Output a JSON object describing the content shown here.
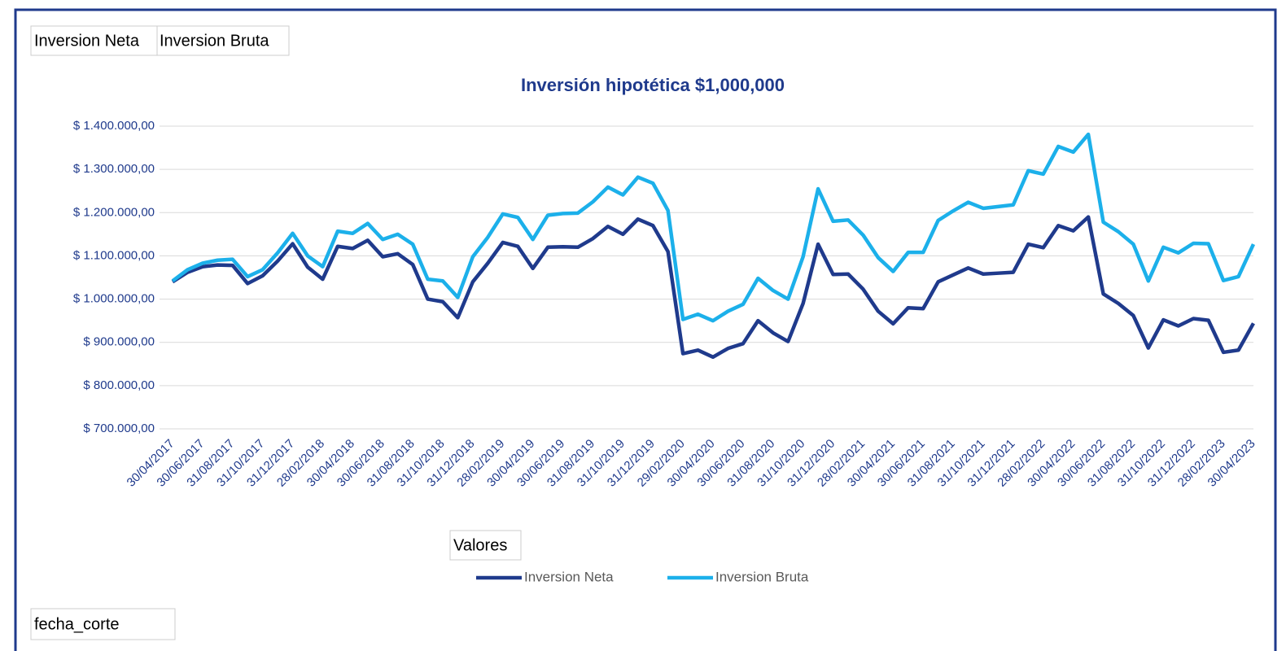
{
  "chart_data": {
    "type": "line",
    "title": "Inversión hipotética $1,000,000",
    "categories": [
      "30/04/2017",
      null,
      "30/06/2017",
      null,
      "31/08/2017",
      null,
      "31/10/2017",
      null,
      "31/12/2017",
      null,
      "28/02/2018",
      null,
      "30/04/2018",
      null,
      "30/06/2018",
      null,
      "31/08/2018",
      null,
      "31/10/2018",
      null,
      "31/12/2018",
      null,
      "28/02/2019",
      null,
      "30/04/2019",
      null,
      "30/06/2019",
      null,
      "31/08/2019",
      null,
      "31/10/2019",
      null,
      "31/12/2019",
      null,
      "29/02/2020",
      null,
      "30/04/2020",
      null,
      "30/06/2020",
      null,
      "31/08/2020",
      null,
      "31/10/2020",
      null,
      "31/12/2020",
      null,
      "28/02/2021",
      null,
      "30/04/2021",
      null,
      "30/06/2021",
      null,
      "31/08/2021",
      null,
      "31/10/2021",
      null,
      "31/12/2021",
      null,
      "28/02/2022",
      null,
      "30/04/2022",
      null,
      "30/06/2022",
      null,
      "31/08/2022",
      null,
      "31/10/2022",
      null,
      "31/12/2022",
      null,
      "28/02/2023",
      null,
      "30/04/2023"
    ],
    "series": [
      {
        "name": "Inversion Neta",
        "color": "#1f3a8c",
        "values": [
          1040000,
          1062000,
          1075000,
          1079000,
          1078000,
          1036000,
          1054000,
          1088000,
          1128000,
          1074000,
          1046000,
          1122000,
          1117000,
          1136000,
          1098000,
          1105000,
          1080000,
          1000000,
          994000,
          957000,
          1040000,
          1083000,
          1131000,
          1122000,
          1071000,
          1120000,
          1121000,
          1120000,
          1140000,
          1168000,
          1150000,
          1185000,
          1170000,
          1110000,
          874000,
          882000,
          866000,
          886000,
          897000,
          950000,
          922000,
          902000,
          990000,
          1127000,
          1057000,
          1058000,
          1023000,
          972000,
          943000,
          980000,
          978000,
          1040000,
          1056000,
          1072000,
          1058000,
          1060000,
          1062000,
          1127000,
          1119000,
          1170000,
          1158000,
          1190000,
          1012000,
          990000,
          962000,
          887000,
          952000,
          938000,
          955000,
          951000,
          877000,
          882000,
          944000
        ]
      },
      {
        "name": "Inversion Bruta",
        "color": "#1cb0ea",
        "values": [
          1042000,
          1068000,
          1083000,
          1090000,
          1092000,
          1052000,
          1068000,
          1107000,
          1152000,
          1100000,
          1075000,
          1157000,
          1152000,
          1175000,
          1138000,
          1150000,
          1127000,
          1046000,
          1042000,
          1004000,
          1098000,
          1143000,
          1197000,
          1189000,
          1138000,
          1194000,
          1198000,
          1199000,
          1225000,
          1259000,
          1241000,
          1282000,
          1268000,
          1205000,
          953000,
          965000,
          950000,
          972000,
          988000,
          1048000,
          1020000,
          1000000,
          1098000,
          1255000,
          1180000,
          1183000,
          1148000,
          1096000,
          1064000,
          1108000,
          1108000,
          1182000,
          1204000,
          1224000,
          1210000,
          1214000,
          1218000,
          1297000,
          1289000,
          1353000,
          1340000,
          1381000,
          1178000,
          1156000,
          1127000,
          1042000,
          1120000,
          1107000,
          1129000,
          1128000,
          1043000,
          1052000,
          1127000
        ]
      }
    ],
    "ylim": [
      700000,
      1400000
    ],
    "yticks": [
      {
        "value": 700000,
        "label": "$ 700.000,00"
      },
      {
        "value": 800000,
        "label": "$ 800.000,00"
      },
      {
        "value": 900000,
        "label": "$ 900.000,00"
      },
      {
        "value": 1000000,
        "label": "$ 1.000.000,00"
      },
      {
        "value": 1100000,
        "label": "$ 1.100.000,00"
      },
      {
        "value": 1200000,
        "label": "$ 1.200.000,00"
      },
      {
        "value": 1300000,
        "label": "$ 1.300.000,00"
      },
      {
        "value": 1400000,
        "label": "$ 1.400.000,00"
      }
    ],
    "grid": true,
    "legend": "bottom"
  },
  "field_buttons": {
    "values": [
      "Inversion Neta",
      "Inversion Bruta"
    ],
    "legend_title": "Valores",
    "axis_field": "fecha_corte"
  }
}
